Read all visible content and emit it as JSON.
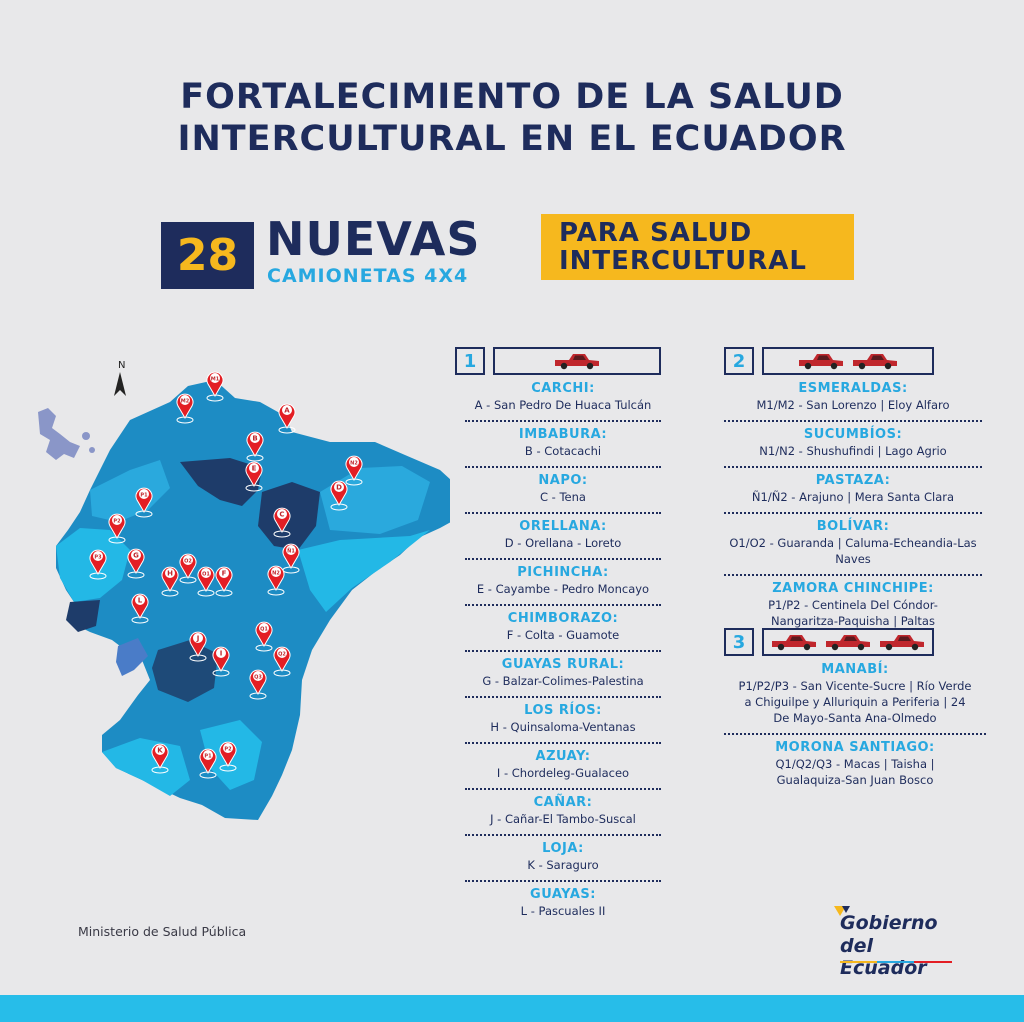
{
  "title": {
    "line1": "FORTALECIMIENTO DE LA SALUD",
    "line2": "INTERCULTURAL EN EL ECUADOR"
  },
  "headline": {
    "number": "28",
    "word": "NUEVAS",
    "subtitle": "CAMIONETAS 4X4",
    "tag_line1": "PARA SALUD",
    "tag_line2": "INTERCULTURAL"
  },
  "map": {
    "north_label": "N",
    "pins": [
      "M1",
      "M2",
      "A",
      "B",
      "E",
      "N2",
      "D",
      "P1",
      "P2",
      "C",
      "Ñ1",
      "P3",
      "G",
      "O2",
      "O1",
      "F",
      "N2",
      "H",
      "L",
      "Q1",
      "J",
      "I",
      "Q2",
      "Q3",
      "K",
      "P1",
      "P2"
    ]
  },
  "groups": [
    {
      "number": "1",
      "trucks": 1,
      "entries": [
        {
          "province": "CARCHI:",
          "detail": "A - San Pedro De Huaca Tulcán"
        },
        {
          "province": "IMBABURA:",
          "detail": "B - Cotacachi"
        },
        {
          "province": "NAPO:",
          "detail": "C - Tena"
        },
        {
          "province": "ORELLANA:",
          "detail": "D - Orellana - Loreto"
        },
        {
          "province": "PICHINCHA:",
          "detail": "E - Cayambe - Pedro Moncayo"
        },
        {
          "province": "CHIMBORAZO:",
          "detail": "F - Colta - Guamote"
        },
        {
          "province": "GUAYAS RURAL:",
          "detail": "G - Balzar-Colimes-Palestina"
        },
        {
          "province": "LOS RÍOS:",
          "detail": "H - Quinsaloma-Ventanas"
        },
        {
          "province": "AZUAY:",
          "detail": "I - Chordeleg-Gualaceo"
        },
        {
          "province": "CAÑAR:",
          "detail": "J - Cañar-El Tambo-Suscal"
        },
        {
          "province": "LOJA:",
          "detail": "K - Saraguro"
        },
        {
          "province": "GUAYAS:",
          "detail": "L - Pascuales II"
        }
      ]
    },
    {
      "number": "2",
      "trucks": 2,
      "entries": [
        {
          "province": "ESMERALDAS:",
          "detail": "M1/M2 - San Lorenzo | Eloy Alfaro"
        },
        {
          "province": "SUCUMBÍOS:",
          "detail": "N1/N2 - Shushufindi | Lago Agrio"
        },
        {
          "province": "PASTAZA:",
          "detail": "Ñ1/Ñ2 - Arajuno | Mera Santa Clara"
        },
        {
          "province": "BOLÍVAR:",
          "detail": "O1/O2 - Guaranda | Caluma-Echeandia-Las Naves"
        },
        {
          "province": "ZAMORA CHINCHIPE:",
          "detail": "P1/P2 - Centinela Del Cóndor-Nangaritza-Paquisha | Paltas"
        }
      ]
    },
    {
      "number": "3",
      "trucks": 3,
      "entries": [
        {
          "province": "MANABÍ:",
          "detail": "P1/P2/P3 - San Vicente-Sucre | Río Verde a Chiguilpe y Alluriquin a Periferia | 24 De Mayo-Santa Ana-Olmedo"
        },
        {
          "province": "MORONA SANTIAGO:",
          "detail": "Q1/Q2/Q3 - Macas | Taisha | Gualaquiza-San Juan Bosco"
        }
      ]
    }
  ],
  "footer": {
    "ministerio": "Ministerio de Salud Pública",
    "logo_line1": "Gobierno",
    "logo_line2": "del Ecuador"
  },
  "colors": {
    "navy": "#1e2c5c",
    "cyan": "#27a8e0",
    "yellow": "#f6b81e",
    "truck_red": "#c0272d"
  }
}
